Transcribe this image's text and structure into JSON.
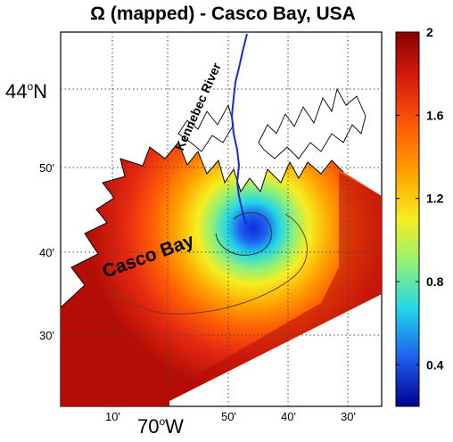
{
  "title": "Ω (mapped) - Casco Bay, USA",
  "latitude_labels": {
    "lat_44N": "44",
    "lat_50": "50'",
    "lat_40": "40'",
    "lat_30": "30'",
    "north": "N"
  },
  "longitude_labels": {
    "lon_10": "10'",
    "lon_70W": "70",
    "lon_50": "50'",
    "lon_40": "40'",
    "lon_30": "30'",
    "west": "W"
  },
  "place_labels": {
    "river": "Kennebec River",
    "bay": "Casco Bay"
  },
  "colorbar": {
    "ticks": [
      "2",
      "1.6",
      "1.2",
      "0.8",
      "0.4"
    ],
    "tick_values": [
      2.0,
      1.6,
      1.2,
      0.8,
      0.4
    ],
    "range": [
      0.2,
      2.0
    ]
  },
  "colors": {
    "deep_red": "#8b0000",
    "red": "#e8200f",
    "orange": "#ff8a00",
    "yellow": "#f6ee20",
    "cyan": "#22d6e8",
    "blue": "#0a2fd8",
    "river": "#1a2ad8"
  }
}
